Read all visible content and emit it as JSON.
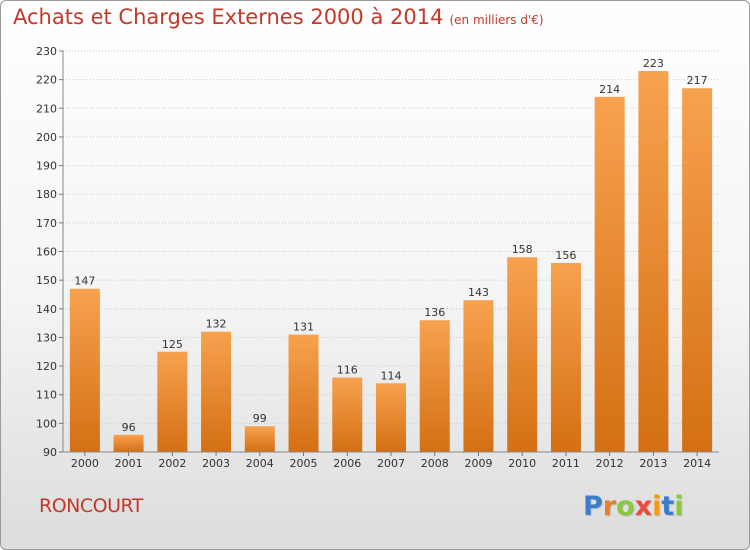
{
  "header": {
    "title": "Achats et Charges Externes 2000 à 2014",
    "unit": "(en milliers d'€)"
  },
  "footer": {
    "commune": "RONCOURT",
    "brand": "Proxiti",
    "brand_letter_colors": [
      "#3a7dc9",
      "#e67e22",
      "#8dc63f",
      "#e74c3c",
      "#f39c12",
      "#3a7dc9",
      "#8dc63f"
    ]
  },
  "colors": {
    "bar_top": "#f7a24e",
    "bar_bottom": "#d46f14",
    "title": "#c0392b"
  },
  "chart_data": {
    "type": "bar",
    "categories": [
      "2000",
      "2001",
      "2002",
      "2003",
      "2004",
      "2005",
      "2006",
      "2007",
      "2008",
      "2009",
      "2010",
      "2011",
      "2012",
      "2013",
      "2014"
    ],
    "values": [
      147,
      96,
      125,
      132,
      99,
      131,
      116,
      114,
      136,
      143,
      158,
      156,
      214,
      223,
      217
    ],
    "title": "Achats et Charges Externes 2000 à 2014",
    "xlabel": "",
    "ylabel": "",
    "ylim": [
      90,
      230
    ],
    "yticks": [
      90,
      100,
      110,
      120,
      130,
      140,
      150,
      160,
      170,
      180,
      190,
      200,
      210,
      220,
      230
    ],
    "grid": true,
    "data_labels": true
  }
}
